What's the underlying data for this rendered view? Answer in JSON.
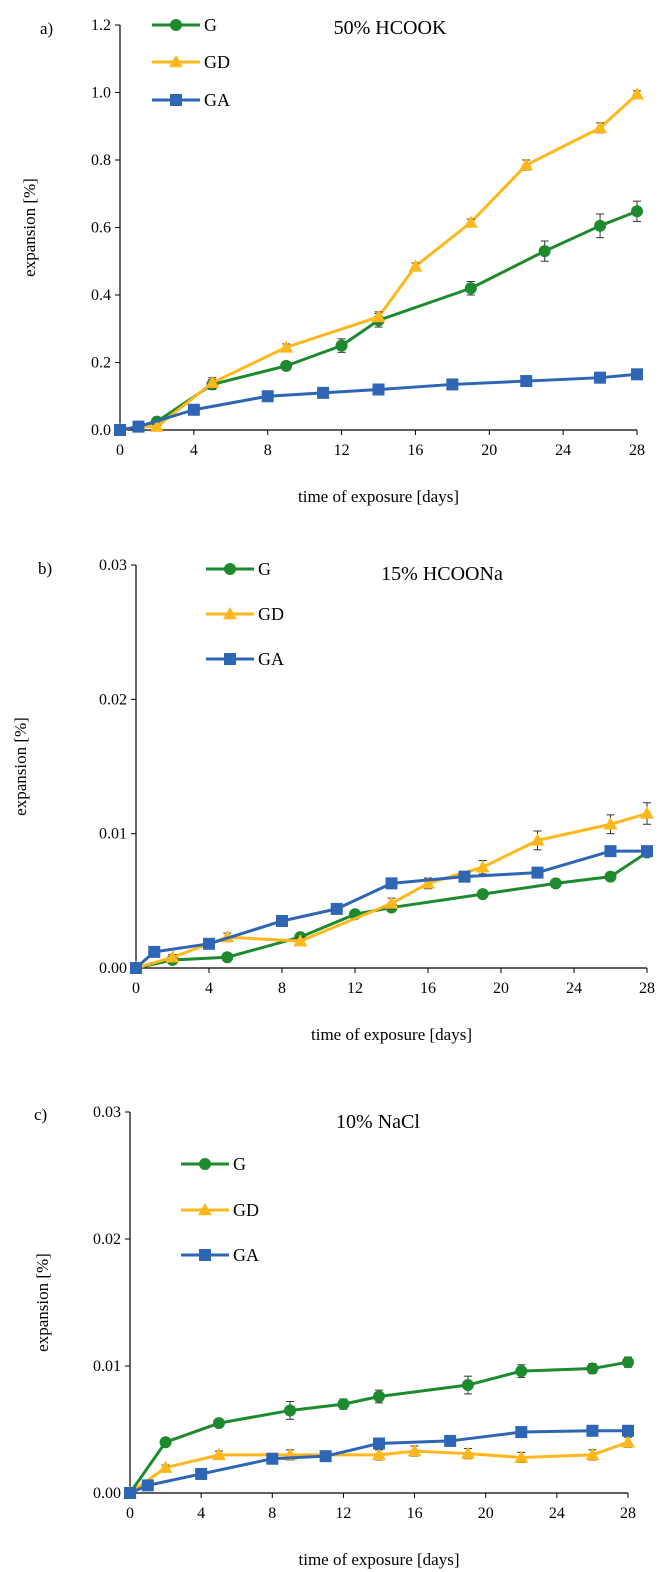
{
  "colors": {
    "G": "#1e8a2e",
    "GD": "#ffb81c",
    "GA": "#2e66b5"
  },
  "chart_data": [
    {
      "type": "line",
      "panel_label": "a)",
      "title": "50% HCOOK",
      "xlabel": "time of exposure [days]",
      "ylabel": "expansion [%]",
      "xlim": [
        0,
        28
      ],
      "ylim": [
        0,
        1.2
      ],
      "xticks": [
        0,
        4,
        8,
        12,
        16,
        20,
        24,
        28
      ],
      "xtick_labels": [
        "0",
        "4",
        "8",
        "12",
        "16",
        "20",
        "24",
        "28"
      ],
      "yticks": [
        0,
        0.2,
        0.4,
        0.6,
        0.8,
        1.0,
        1.2
      ],
      "ytick_labels": [
        "0.0",
        "0.2",
        "0.4",
        "0.6",
        "0.8",
        "1.0",
        "1.2"
      ],
      "legend": "top-left",
      "series": [
        {
          "name": "G",
          "marker": "circle",
          "x": [
            0,
            1,
            2,
            5,
            9,
            12,
            14,
            19,
            23,
            26,
            28
          ],
          "y": [
            0.0,
            0.01,
            0.025,
            0.135,
            0.19,
            0.25,
            0.325,
            0.42,
            0.53,
            0.605,
            0.648
          ],
          "err": [
            0,
            0,
            0,
            0.015,
            0.012,
            0.02,
            0.02,
            0.02,
            0.03,
            0.035,
            0.03
          ]
        },
        {
          "name": "GD",
          "marker": "triangle",
          "x": [
            0,
            1,
            2,
            5,
            9,
            14,
            16,
            19,
            22,
            26,
            28
          ],
          "y": [
            0.0,
            0.01,
            0.01,
            0.14,
            0.245,
            0.335,
            0.485,
            0.615,
            0.785,
            0.895,
            0.995
          ],
          "err": [
            0,
            0,
            0,
            0.015,
            0.01,
            0.015,
            0.01,
            0.01,
            0.015,
            0.015,
            0.01
          ]
        },
        {
          "name": "GA",
          "marker": "square",
          "x": [
            0,
            1,
            4,
            8,
            11,
            14,
            18,
            22,
            26,
            28
          ],
          "y": [
            0.0,
            0.01,
            0.06,
            0.1,
            0.11,
            0.12,
            0.135,
            0.145,
            0.155,
            0.165
          ],
          "err": [
            0,
            0,
            0.005,
            0.005,
            0.005,
            0.005,
            0.005,
            0.005,
            0.005,
            0.005
          ]
        }
      ]
    },
    {
      "type": "line",
      "panel_label": "b)",
      "title": "15% HCOONa",
      "xlabel": "time of exposure [days]",
      "ylabel": "expansion [%]",
      "xlim": [
        0,
        28
      ],
      "ylim": [
        0,
        0.03
      ],
      "xticks": [
        0,
        4,
        8,
        12,
        16,
        20,
        24,
        28
      ],
      "xtick_labels": [
        "0",
        "4",
        "8",
        "12",
        "16",
        "20",
        "24",
        "28"
      ],
      "yticks": [
        0,
        0.01,
        0.02,
        0.03
      ],
      "ytick_labels": [
        "0.00",
        "0.01",
        "0.02",
        "0.03"
      ],
      "legend": "top-left",
      "series": [
        {
          "name": "G",
          "marker": "circle",
          "x": [
            0,
            2,
            5,
            9,
            12,
            14,
            19,
            23,
            26,
            28
          ],
          "y": [
            0.0,
            0.0006,
            0.0008,
            0.0023,
            0.004,
            0.0045,
            0.0055,
            0.0063,
            0.0068,
            0.0086
          ],
          "err": [
            0,
            0.0001,
            0.0001,
            0.0002,
            0.0002,
            0.0003,
            0.0003,
            0.0003,
            0.0003,
            0.0003
          ]
        },
        {
          "name": "GD",
          "marker": "triangle",
          "x": [
            0,
            2,
            5,
            9,
            14,
            16,
            19,
            22,
            26,
            28
          ],
          "y": [
            0.0,
            0.0008,
            0.0023,
            0.002,
            0.0048,
            0.0063,
            0.0075,
            0.0095,
            0.0107,
            0.0115
          ],
          "err": [
            0,
            0.0002,
            0.0003,
            0.0003,
            0.0004,
            0.0004,
            0.0005,
            0.0007,
            0.0007,
            0.0008
          ]
        },
        {
          "name": "GA",
          "marker": "square",
          "x": [
            0,
            1,
            4,
            8,
            11,
            14,
            18,
            22,
            26,
            28
          ],
          "y": [
            0.0,
            0.0012,
            0.0018,
            0.0035,
            0.0044,
            0.0063,
            0.0068,
            0.0071,
            0.0087,
            0.0087
          ],
          "err": [
            0,
            0.0001,
            0.0002,
            0.0002,
            0.0002,
            0.0003,
            0.0003,
            0.0003,
            0.0003,
            0.0003
          ]
        }
      ]
    },
    {
      "type": "line",
      "panel_label": "c)",
      "title": "10% NaCl",
      "xlabel": "time of exposure [days]",
      "ylabel": "expansion [%]",
      "xlim": [
        0,
        28
      ],
      "ylim": [
        0,
        0.03
      ],
      "xticks": [
        0,
        4,
        8,
        12,
        16,
        20,
        24,
        28
      ],
      "xtick_labels": [
        "0",
        "4",
        "8",
        "12",
        "16",
        "20",
        "24",
        "28"
      ],
      "yticks": [
        0,
        0.01,
        0.02,
        0.03
      ],
      "ytick_labels": [
        "0.00",
        "0.01",
        "0.02",
        "0.03"
      ],
      "legend": "top-left",
      "series": [
        {
          "name": "G",
          "marker": "circle",
          "x": [
            0,
            2,
            5,
            9,
            12,
            14,
            19,
            22,
            26,
            28
          ],
          "y": [
            0.0,
            0.004,
            0.0055,
            0.0065,
            0.007,
            0.0076,
            0.0085,
            0.0096,
            0.0098,
            0.0103
          ],
          "err": [
            0,
            0.0002,
            0.0002,
            0.0007,
            0.0004,
            0.0005,
            0.0007,
            0.0005,
            0.0004,
            0.0004
          ]
        },
        {
          "name": "GD",
          "marker": "triangle",
          "x": [
            0,
            2,
            5,
            9,
            14,
            16,
            19,
            22,
            26,
            28
          ],
          "y": [
            0.0,
            0.002,
            0.003,
            0.003,
            0.003,
            0.0033,
            0.0031,
            0.0028,
            0.003,
            0.004
          ],
          "err": [
            0,
            0.0002,
            0.0003,
            0.0004,
            0.0004,
            0.0004,
            0.0004,
            0.0004,
            0.0004,
            0.0004
          ]
        },
        {
          "name": "GA",
          "marker": "square",
          "x": [
            0,
            1,
            4,
            8,
            11,
            14,
            18,
            22,
            26,
            28
          ],
          "y": [
            0.0,
            0.0006,
            0.0015,
            0.0027,
            0.0029,
            0.0039,
            0.0041,
            0.0048,
            0.0049,
            0.0049
          ],
          "err": [
            0,
            0.0001,
            0.0001,
            0.0001,
            0.0001,
            0.0002,
            0.0002,
            0.0002,
            0.0002,
            0.0002
          ]
        }
      ]
    }
  ]
}
